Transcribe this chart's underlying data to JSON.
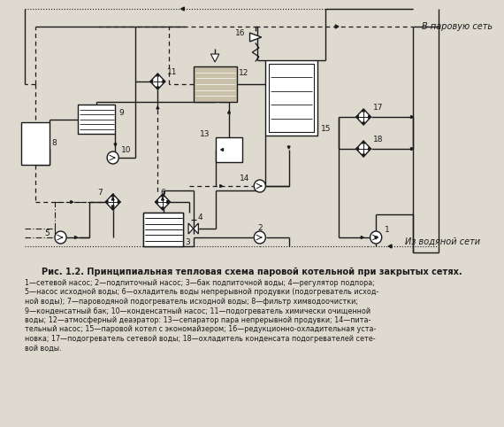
{
  "title": "Рис. 1.2. Принципиальная тепловая схема паровой котельной при закрытых сетях.",
  "caption_lines": [
    "1—сетевой насос; 2—подпиточный насос; 3—бак подпиточной воды; 4—регулятор подпора;",
    "5—насос исходной воды; 6—охладитель воды непрерывной продувки (подогреватель исход-",
    "ной воды); 7—пароводяной подогреватель исходной воды; 8—фильтр химводоочистки;",
    "9—конденсатный бак; 10—конденсатный насос; 11—подогреватель химически очищенной",
    "воды; 12—атмосферный деаэратор: 13—сепаратор пара непрерывной продувки; 14—пита-",
    "тельный насос; 15—паровой котел с экономайзером; 16—редукционно-охладительная уста-",
    "новка; 17—подогреватель сетевой воды; 18—охладитель конденсата подогревателей сете-",
    "вой воды."
  ],
  "bg_color": "#dedad0",
  "line_color": "#1a1a1a",
  "label_v_parovuyu": "В паровую сеть",
  "label_iz_vodnoy": "Из водяной сети"
}
